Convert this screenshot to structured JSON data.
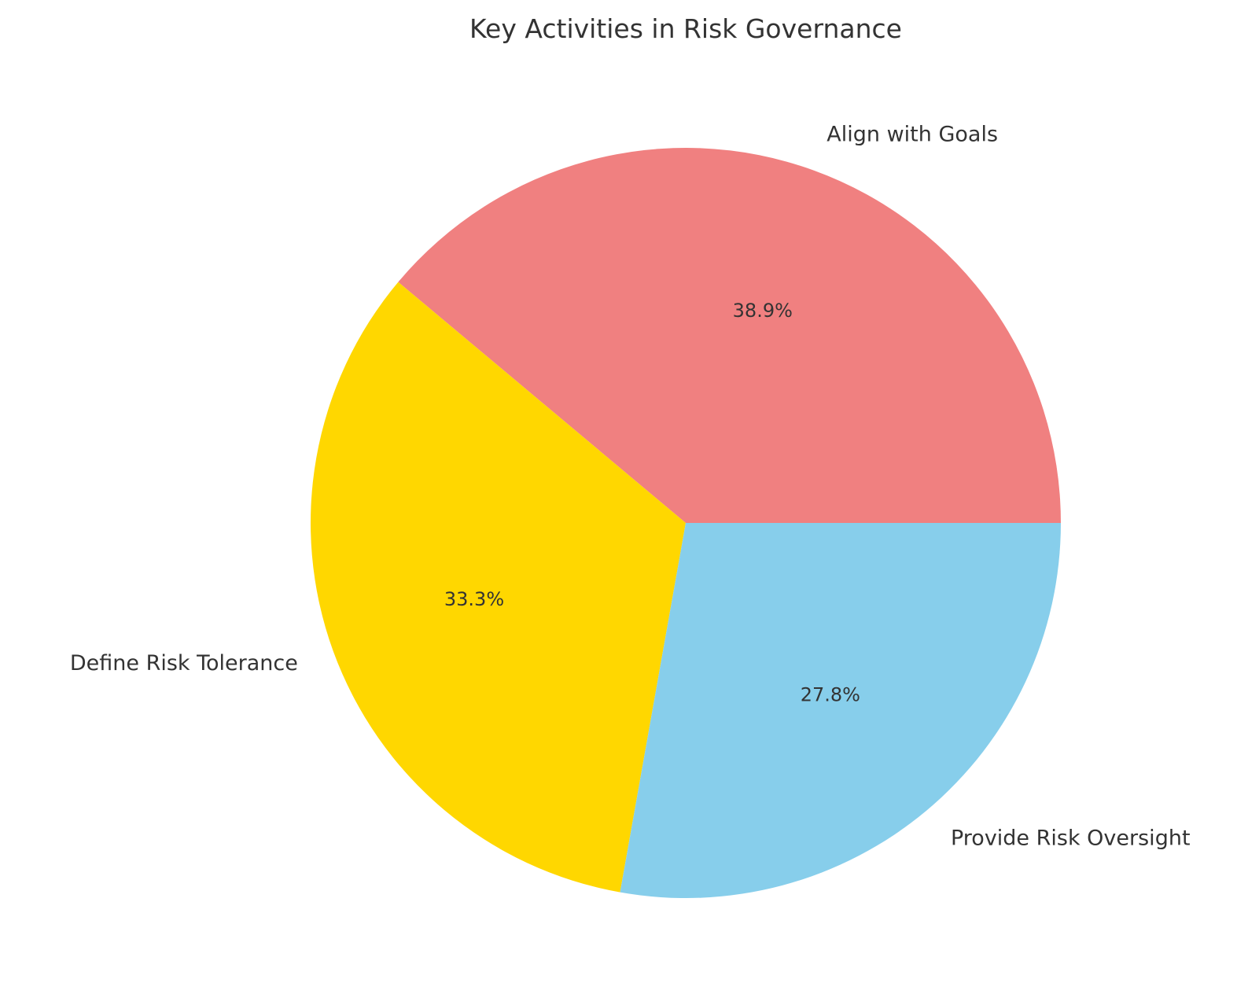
{
  "chart_data": {
    "type": "pie",
    "title": "Key Activities in Risk Governance",
    "categories": [
      "Align with Goals",
      "Define Risk Tolerance",
      "Provide Risk Oversight"
    ],
    "values": [
      38.9,
      33.3,
      27.8
    ],
    "percent_labels": [
      "38.9%",
      "33.3%",
      "27.8%"
    ],
    "colors": [
      "#F08080",
      "#FFD700",
      "#87CEEB"
    ],
    "start_angle_deg": 0,
    "direction": "counterclockwise",
    "legend": "none"
  }
}
